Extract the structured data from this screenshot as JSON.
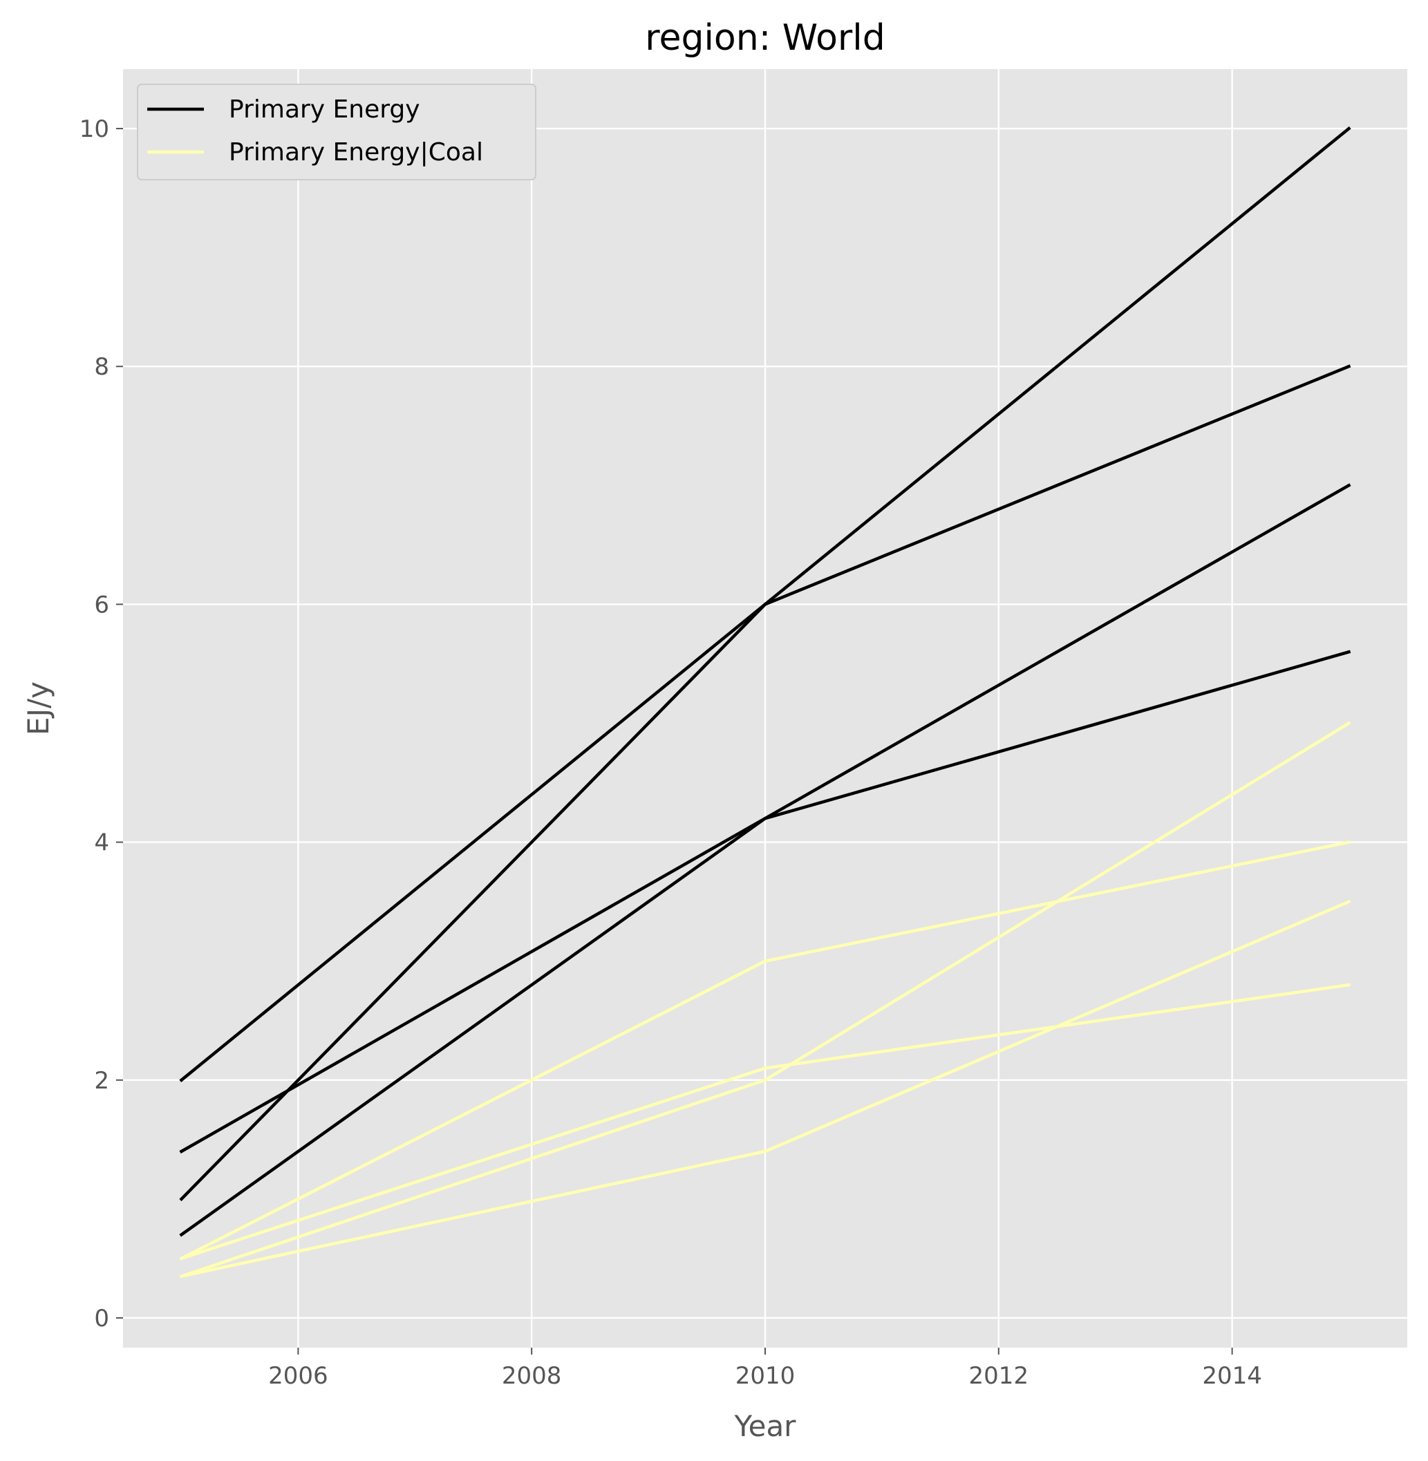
{
  "chart_data": {
    "type": "line",
    "title": "region: World",
    "xlabel": "Year",
    "ylabel": "EJ/y",
    "xlim": [
      2004.5,
      2015.5
    ],
    "ylim": [
      -0.25,
      10.5
    ],
    "xticks": [
      2006,
      2008,
      2010,
      2012,
      2014
    ],
    "yticks": [
      0,
      2,
      4,
      6,
      8,
      10
    ],
    "grid": true,
    "legend_position": "upper-left",
    "colors": {
      "background": "#e5e5e5",
      "grid": "#ffffff",
      "primary_energy": "#000000",
      "primary_energy_coal": "#ffffb3"
    },
    "legend": [
      {
        "label": "Primary Energy",
        "color": "#000000"
      },
      {
        "label": "Primary Energy|Coal",
        "color": "#ffffb3"
      }
    ],
    "series": [
      {
        "group": "Primary Energy",
        "x": [
          2005,
          2010,
          2015
        ],
        "y": [
          2.0,
          6.0,
          10.0
        ]
      },
      {
        "group": "Primary Energy",
        "x": [
          2005,
          2010,
          2015
        ],
        "y": [
          1.0,
          6.0,
          8.0
        ]
      },
      {
        "group": "Primary Energy",
        "x": [
          2005,
          2010,
          2015
        ],
        "y": [
          0.7,
          4.2,
          7.0
        ]
      },
      {
        "group": "Primary Energy",
        "x": [
          2005,
          2010,
          2015
        ],
        "y": [
          1.4,
          4.2,
          5.6
        ]
      },
      {
        "group": "Primary Energy|Coal",
        "x": [
          2005,
          2010,
          2015
        ],
        "y": [
          0.5,
          3.0,
          4.0
        ]
      },
      {
        "group": "Primary Energy|Coal",
        "x": [
          2005,
          2010,
          2015
        ],
        "y": [
          0.35,
          2.0,
          5.0
        ]
      },
      {
        "group": "Primary Energy|Coal",
        "x": [
          2005,
          2010,
          2015
        ],
        "y": [
          0.5,
          2.1,
          2.8
        ]
      },
      {
        "group": "Primary Energy|Coal",
        "x": [
          2005,
          2010,
          2015
        ],
        "y": [
          0.35,
          1.4,
          3.5
        ]
      }
    ]
  }
}
